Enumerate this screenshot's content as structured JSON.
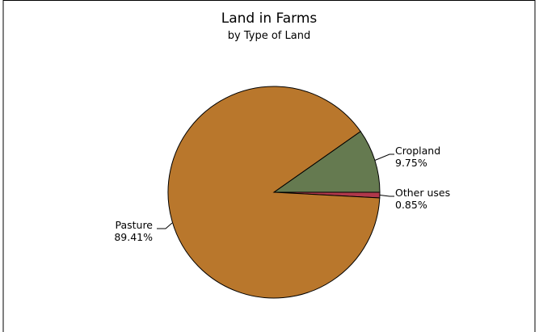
{
  "chart_data": {
    "type": "pie",
    "title": "Land in Farms",
    "subtitle": "by Type of Land",
    "slices": [
      {
        "label": "Cropland",
        "value": 9.75,
        "value_label": "9.75%",
        "color": "#657a50"
      },
      {
        "label": "Other uses",
        "value": 0.85,
        "value_label": "0.85%",
        "color": "#b0384b"
      },
      {
        "label": "Pasture",
        "value": 89.41,
        "value_label": "89.41%",
        "color": "#b9772c"
      }
    ],
    "start_angle_deg": 0,
    "direction": "clockwise-from-top-right-upward",
    "outline_color": "#000000"
  }
}
